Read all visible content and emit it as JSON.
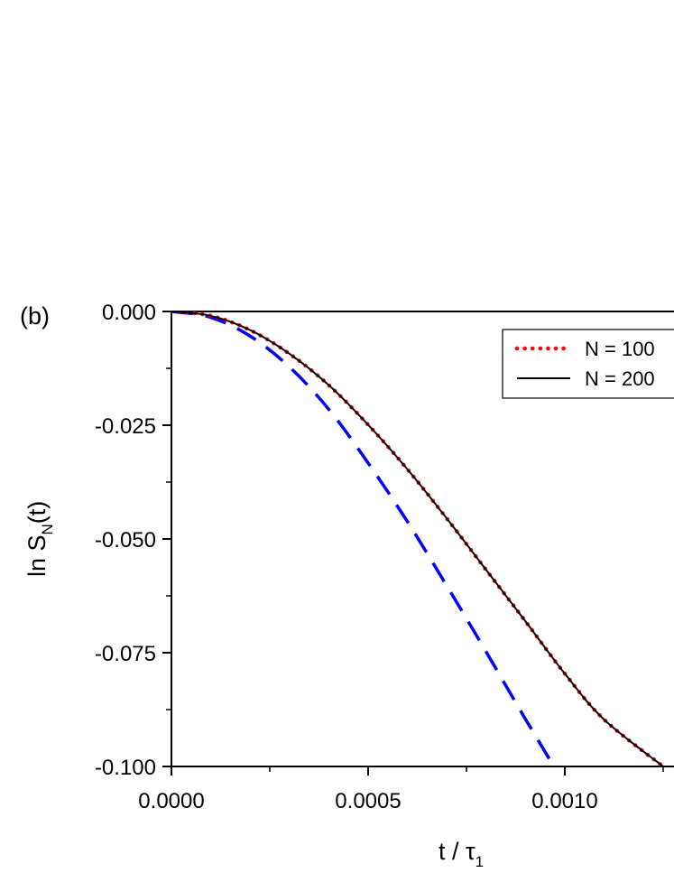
{
  "panel_label": "(b)",
  "chart_data": {
    "type": "line",
    "title": "",
    "xlabel": "t / τ",
    "xlabel_sub": "1",
    "ylabel_main": "ln S",
    "ylabel_sub": "N",
    "ylabel_tail": "(t)",
    "xlim": [
      0.0,
      0.0013
    ],
    "ylim": [
      -0.1,
      0.0
    ],
    "x_ticks": [
      {
        "value": 0.0,
        "label": "0.0000"
      },
      {
        "value": 0.0005,
        "label": "0.0005"
      },
      {
        "value": 0.001,
        "label": "0.0010"
      }
    ],
    "y_ticks": [
      {
        "value": 0.0,
        "label": "0.000"
      },
      {
        "value": -0.025,
        "label": "-0.025"
      },
      {
        "value": -0.05,
        "label": "-0.050"
      },
      {
        "value": -0.075,
        "label": "-0.075"
      },
      {
        "value": -0.1,
        "label": "-0.100"
      }
    ],
    "legend_position": "top-right",
    "series": [
      {
        "name": "N = 100",
        "style": "dotted",
        "color": "#ff0000",
        "x": [
          0.0,
          0.0001,
          0.0002,
          0.0003,
          0.0004,
          0.0005,
          0.0006,
          0.0007,
          0.0008,
          0.0009,
          0.001,
          0.0011,
          0.00125
        ],
        "y": [
          0.0,
          -0.00095,
          -0.0041,
          -0.0093,
          -0.0162,
          -0.0249,
          -0.0347,
          -0.0455,
          -0.0568,
          -0.0681,
          -0.0796,
          -0.0897,
          -0.1
        ]
      },
      {
        "name": "N = 200",
        "style": "solid",
        "color": "#000000",
        "x": [
          0.0,
          0.0001,
          0.0002,
          0.0003,
          0.0004,
          0.0005,
          0.0006,
          0.0007,
          0.0008,
          0.0009,
          0.001,
          0.0011,
          0.00125
        ],
        "y": [
          0.0,
          -0.00095,
          -0.0041,
          -0.0093,
          -0.0162,
          -0.0249,
          -0.0347,
          -0.0455,
          -0.0568,
          -0.0681,
          -0.0796,
          -0.0897,
          -0.1
        ]
      },
      {
        "style": "dashed",
        "color": "#0000ff",
        "x": [
          0.0,
          0.0001,
          0.0002,
          0.0003,
          0.0004,
          0.0005,
          0.0006,
          0.0007,
          0.0008,
          0.0009,
          0.001,
          0.0011
        ],
        "y": [
          0.0,
          -0.0013,
          -0.0054,
          -0.0122,
          -0.0215,
          -0.0333,
          -0.0462,
          -0.0603,
          -0.0748,
          -0.0896,
          -0.1039,
          -0.1177
        ]
      }
    ]
  }
}
